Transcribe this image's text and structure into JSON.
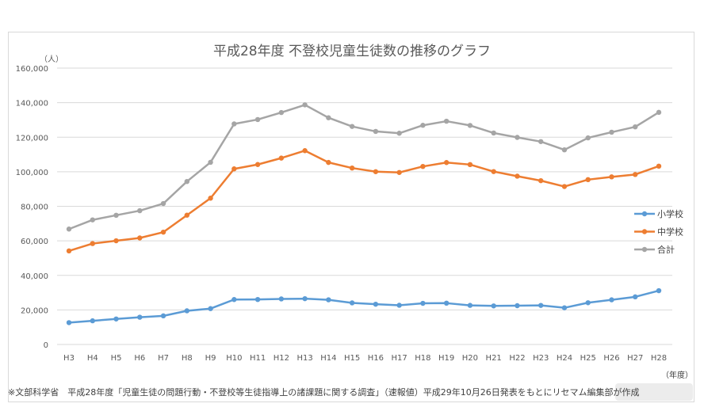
{
  "chart_data": {
    "type": "line",
    "title": "平成28年度 不登校児童生徒数の推移のグラフ",
    "ylabel": "（人）",
    "xlabel": "（年度）",
    "ylim": [
      0,
      160000
    ],
    "yticks": [
      "0",
      "20,000",
      "40,000",
      "60,000",
      "80,000",
      "100,000",
      "120,000",
      "140,000",
      "160,000"
    ],
    "grid": true,
    "legend": "right",
    "categories": [
      "H3",
      "H4",
      "H5",
      "H6",
      "H7",
      "H8",
      "H9",
      "H10",
      "H11",
      "H12",
      "H13",
      "H14",
      "H15",
      "H16",
      "H17",
      "H18",
      "H19",
      "H20",
      "H21",
      "H22",
      "H23",
      "H24",
      "H25",
      "H26",
      "H27",
      "H28"
    ],
    "series": [
      {
        "name": "小学校",
        "color": "#5b9bd5",
        "values": [
          12645,
          13710,
          14769,
          15786,
          16569,
          19498,
          20765,
          26017,
          26047,
          26373,
          26511,
          25869,
          24077,
          23318,
          22709,
          23825,
          23927,
          22652,
          22327,
          22463,
          22622,
          21243,
          24175,
          25864,
          27583,
          31151
        ]
      },
      {
        "name": "中学校",
        "color": "#ed7d31",
        "values": [
          54172,
          58421,
          60039,
          61663,
          65022,
          74853,
          84701,
          101675,
          104180,
          107913,
          112211,
          105383,
          102149,
          100040,
          99578,
          103069,
          105328,
          104153,
          100105,
          97428,
          94836,
          91446,
          95442,
          97033,
          98408,
          103235
        ]
      },
      {
        "name": "合計",
        "color": "#a5a5a5",
        "values": [
          66817,
          72131,
          74808,
          77449,
          81591,
          94351,
          105466,
          127692,
          130227,
          134286,
          138722,
          131252,
          126226,
          123358,
          122287,
          126894,
          129255,
          126805,
          122432,
          119891,
          117458,
          112689,
          119617,
          122897,
          125991,
          134386
        ]
      }
    ]
  },
  "footnote": "※文部科学省　平成28年度「児童生徒の問題行動・不登校等生徒指導上の諸課題に関する調査」（速報値）平成29年10月26日発表をもとにリセマム編集部が作成",
  "watermark": "ReseMom"
}
